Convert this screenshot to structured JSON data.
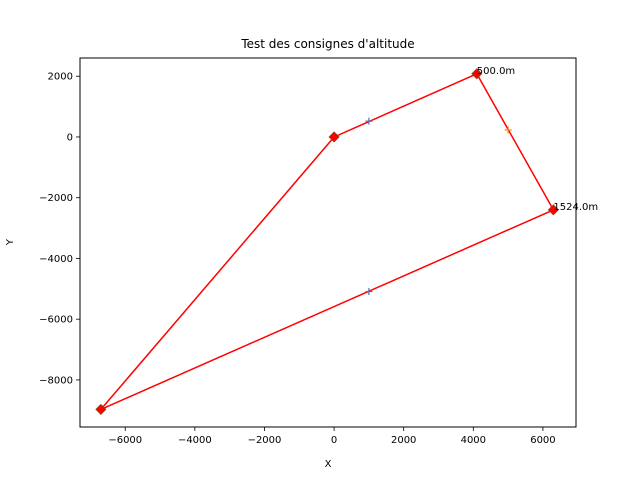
{
  "chart_data": {
    "type": "line",
    "title": "Test des consignes d'altitude",
    "xlabel": "X",
    "ylabel": "Y",
    "xlim": [
      -7300,
      6950
    ],
    "ylim": [
      -9550,
      2600
    ],
    "xticks": [
      -6000,
      -4000,
      -2000,
      0,
      2000,
      4000,
      6000
    ],
    "yticks": [
      -8000,
      -6000,
      -4000,
      -2000,
      0,
      2000
    ],
    "grid": false,
    "colors": {
      "path": "#ff0000",
      "waypoint_edge": "#8b4513",
      "cross_blue": "#4c72b0",
      "cross_orange": "#ff7f0e"
    },
    "path": [
      {
        "x": 0,
        "y": 0
      },
      {
        "x": 4100,
        "y": 2080
      },
      {
        "x": 6300,
        "y": -2400
      },
      {
        "x": -6700,
        "y": -8970
      },
      {
        "x": 0,
        "y": 0
      }
    ],
    "waypoints": [
      {
        "x": 0,
        "y": 0
      },
      {
        "x": 4100,
        "y": 2080
      },
      {
        "x": 6300,
        "y": -2400
      },
      {
        "x": -6700,
        "y": -8970
      }
    ],
    "crosses": [
      {
        "x": 1000,
        "y": 520,
        "color": "#4c72b0"
      },
      {
        "x": 5000,
        "y": 230,
        "color": "#ff7f0e"
      },
      {
        "x": 1000,
        "y": -5090,
        "color": "#4c72b0"
      }
    ],
    "annotations": [
      {
        "text": "500.0m",
        "x": 4100,
        "y": 2080
      },
      {
        "text": "1524.0m",
        "x": 6300,
        "y": -2400
      }
    ]
  }
}
